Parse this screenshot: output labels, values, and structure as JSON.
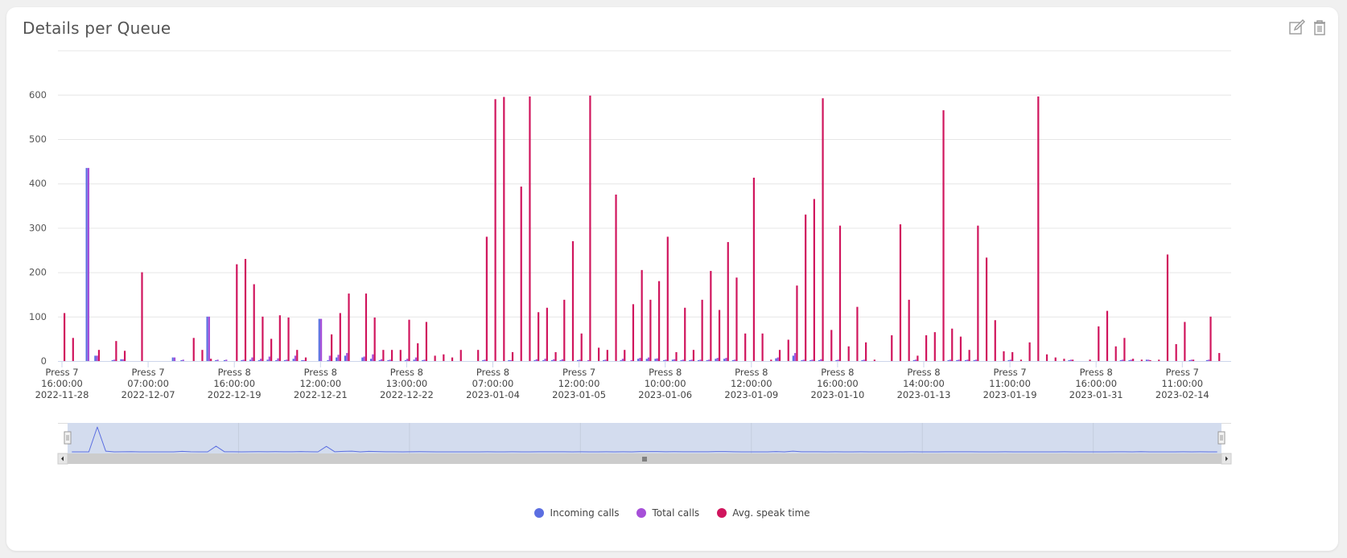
{
  "header": {
    "title": "Details per Queue",
    "edit_icon": "edit-icon",
    "delete_icon": "trash-icon"
  },
  "colors": {
    "incoming": "#5b6ee1",
    "total": "#a64fd8",
    "avg": "#d0155d",
    "grid": "#e6e6e6",
    "navigator_fill": "#d3dcee",
    "navigator_line": "#5b6ee1",
    "scrollbar": "#cccccc"
  },
  "chart_data": {
    "type": "bar",
    "title": "Details per Queue",
    "xlabel": "",
    "ylabel": "",
    "ylim": [
      0,
      700
    ],
    "yticks": [
      0,
      100,
      200,
      300,
      400,
      500,
      600
    ],
    "grid": true,
    "legend_position": "bottom",
    "tick_labels": [
      {
        "index": 0,
        "lines": [
          "Press 7",
          "16:00:00",
          "2022-11-28"
        ]
      },
      {
        "index": 10,
        "lines": [
          "Press 7",
          "07:00:00",
          "2022-12-07"
        ]
      },
      {
        "index": 20,
        "lines": [
          "Press 8",
          "16:00:00",
          "2022-12-19"
        ]
      },
      {
        "index": 30,
        "lines": [
          "Press 8",
          "12:00:00",
          "2022-12-21"
        ]
      },
      {
        "index": 40,
        "lines": [
          "Press 8",
          "13:00:00",
          "2022-12-22"
        ]
      },
      {
        "index": 50,
        "lines": [
          "Press 8",
          "07:00:00",
          "2023-01-04"
        ]
      },
      {
        "index": 60,
        "lines": [
          "Press 7",
          "12:00:00",
          "2023-01-05"
        ]
      },
      {
        "index": 70,
        "lines": [
          "Press 8",
          "10:00:00",
          "2023-01-06"
        ]
      },
      {
        "index": 80,
        "lines": [
          "Press 8",
          "12:00:00",
          "2023-01-09"
        ]
      },
      {
        "index": 90,
        "lines": [
          "Press 8",
          "16:00:00",
          "2023-01-10"
        ]
      },
      {
        "index": 100,
        "lines": [
          "Press 8",
          "14:00:00",
          "2023-01-13"
        ]
      },
      {
        "index": 110,
        "lines": [
          "Press 7",
          "11:00:00",
          "2023-01-19"
        ]
      },
      {
        "index": 120,
        "lines": [
          "Press 8",
          "16:00:00",
          "2023-01-31"
        ]
      },
      {
        "index": 130,
        "lines": [
          "Press 7",
          "11:00:00",
          "2023-02-14"
        ]
      }
    ],
    "category_count": 136,
    "series": [
      {
        "name": "Incoming calls",
        "color": "#5b6ee1",
        "values": [
          0,
          0,
          0,
          435,
          12,
          0,
          2,
          4,
          0,
          0,
          0,
          0,
          0,
          8,
          2,
          0,
          0,
          100,
          2,
          2,
          0,
          2,
          3,
          2,
          3,
          2,
          2,
          5,
          2,
          0,
          95,
          2,
          8,
          12,
          0,
          8,
          5,
          2,
          2,
          0,
          2,
          3,
          2,
          0,
          0,
          0,
          0,
          0,
          0,
          2,
          0,
          0,
          2,
          0,
          0,
          2,
          2,
          2,
          2,
          0,
          2,
          0,
          0,
          2,
          0,
          2,
          0,
          5,
          5,
          5,
          2,
          3,
          2,
          2,
          2,
          2,
          5,
          5,
          2,
          0,
          0,
          0,
          0,
          6,
          0,
          12,
          2,
          2,
          2,
          0,
          2,
          0,
          0,
          2,
          0,
          0,
          0,
          0,
          0,
          2,
          0,
          0,
          0,
          2,
          2,
          2,
          2,
          0,
          0,
          0,
          2,
          0,
          0,
          0,
          0,
          0,
          0,
          2,
          0,
          0,
          0,
          0,
          0,
          2,
          2,
          0,
          3,
          0,
          0,
          0,
          0,
          2,
          0,
          2,
          0,
          0
        ]
      },
      {
        "name": "Total calls",
        "color": "#a64fd8",
        "values": [
          0,
          0,
          0,
          435,
          12,
          0,
          3,
          4,
          0,
          0,
          0,
          0,
          0,
          8,
          3,
          0,
          0,
          100,
          3,
          3,
          0,
          3,
          8,
          5,
          10,
          6,
          3,
          12,
          2,
          0,
          95,
          12,
          14,
          18,
          0,
          10,
          15,
          4,
          3,
          0,
          5,
          8,
          3,
          0,
          0,
          0,
          0,
          0,
          0,
          3,
          0,
          0,
          2,
          0,
          0,
          4,
          5,
          4,
          4,
          0,
          3,
          2,
          0,
          3,
          0,
          5,
          2,
          7,
          8,
          6,
          3,
          4,
          3,
          3,
          3,
          3,
          7,
          7,
          3,
          0,
          0,
          0,
          0,
          8,
          0,
          18,
          3,
          3,
          4,
          0,
          3,
          0,
          0,
          3,
          0,
          0,
          0,
          0,
          0,
          3,
          0,
          0,
          0,
          3,
          3,
          3,
          3,
          0,
          0,
          0,
          3,
          0,
          0,
          0,
          0,
          0,
          0,
          3,
          0,
          0,
          0,
          0,
          0,
          3,
          3,
          0,
          3,
          0,
          0,
          0,
          0,
          3,
          0,
          3,
          0,
          0
        ]
      },
      {
        "name": "Avg. speak time",
        "color": "#d0155d",
        "values": [
          108,
          52,
          0,
          0,
          25,
          0,
          45,
          23,
          0,
          200,
          0,
          0,
          0,
          0,
          0,
          52,
          25,
          5,
          0,
          0,
          218,
          230,
          173,
          100,
          50,
          103,
          98,
          25,
          8,
          0,
          0,
          60,
          108,
          152,
          0,
          152,
          98,
          25,
          25,
          25,
          93,
          40,
          88,
          12,
          15,
          8,
          25,
          0,
          25,
          280,
          590,
          595,
          20,
          393,
          596,
          110,
          120,
          20,
          138,
          270,
          62,
          598,
          30,
          25,
          375,
          25,
          128,
          205,
          138,
          180,
          280,
          20,
          120,
          25,
          138,
          203,
          115,
          268,
          188,
          62,
          413,
          62,
          3,
          25,
          48,
          170,
          330,
          365,
          592,
          70,
          305,
          33,
          122,
          42,
          3,
          0,
          58,
          308,
          138,
          12,
          58,
          65,
          565,
          73,
          55,
          25,
          305,
          233,
          92,
          22,
          20,
          3,
          42,
          596,
          15,
          8,
          5,
          3,
          0,
          3,
          78,
          113,
          33,
          52,
          5,
          3,
          2,
          3,
          240,
          38,
          88,
          3,
          0,
          100,
          18,
          0
        ]
      }
    ]
  },
  "navigator": {
    "series_name": "Incoming calls",
    "left_handle": "left-handle",
    "right_handle": "right-handle",
    "scroll_thumb": "scrollbar-thumb"
  },
  "legend": [
    {
      "label": "Incoming calls",
      "color": "#5b6ee1"
    },
    {
      "label": "Total calls",
      "color": "#a64fd8"
    },
    {
      "label": "Avg. speak time",
      "color": "#d0155d"
    }
  ]
}
